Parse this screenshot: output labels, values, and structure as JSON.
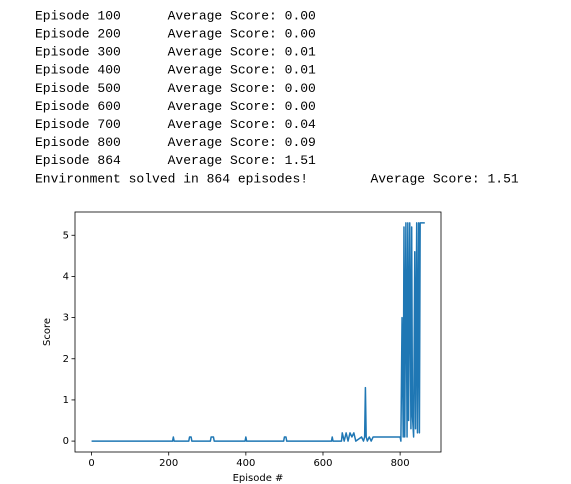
{
  "log": [
    "Episode 100      Average Score: 0.00",
    "Episode 200      Average Score: 0.00",
    "Episode 300      Average Score: 0.01",
    "Episode 400      Average Score: 0.01",
    "Episode 500      Average Score: 0.00",
    "Episode 600      Average Score: 0.00",
    "Episode 700      Average Score: 0.04",
    "Episode 800      Average Score: 0.09",
    "Episode 864      Average Score: 1.51",
    "Environment solved in 864 episodes!        Average Score: 1.51"
  ],
  "chart_data": {
    "type": "line",
    "x_label": "Episode #",
    "y_label": "Score",
    "color": "#1f77b4",
    "x": [
      0,
      210,
      212,
      214,
      252,
      254,
      258,
      260,
      308,
      310,
      316,
      318,
      398,
      400,
      402,
      498,
      500,
      504,
      506,
      622,
      624,
      626,
      648,
      650,
      655,
      660,
      665,
      670,
      675,
      680,
      685,
      700,
      705,
      708,
      710,
      712,
      715,
      720,
      725,
      730,
      750,
      780,
      800,
      802,
      805,
      808,
      810,
      812,
      815,
      818,
      820,
      822,
      825,
      828,
      830,
      832,
      835,
      838,
      840,
      843,
      845,
      848,
      850,
      852,
      864
    ],
    "values": [
      0,
      0,
      0.1,
      0,
      0,
      0.1,
      0.1,
      0,
      0,
      0.1,
      0.1,
      0,
      0,
      0.1,
      0,
      0,
      0.1,
      0.1,
      0,
      0,
      0.1,
      0,
      0,
      0.2,
      0,
      0.2,
      0,
      0.2,
      0.1,
      0.2,
      0,
      0.1,
      0,
      0.1,
      1.3,
      0.1,
      0,
      0.1,
      0,
      0.1,
      0.1,
      0.1,
      0.1,
      0,
      3.0,
      0.1,
      5.2,
      0.1,
      5.3,
      0.1,
      5.3,
      0.5,
      5.3,
      0.3,
      5.2,
      0.6,
      0.1,
      4.6,
      0.3,
      5.3,
      0.2,
      5.3,
      0.2,
      5.3,
      5.3
    ],
    "xlim": [
      -43,
      906
    ],
    "ylim": [
      -0.265,
      5.565
    ],
    "xticks": [
      0,
      200,
      400,
      600,
      800
    ],
    "yticks": [
      0,
      1,
      2,
      3,
      4,
      5
    ],
    "grid": false
  }
}
